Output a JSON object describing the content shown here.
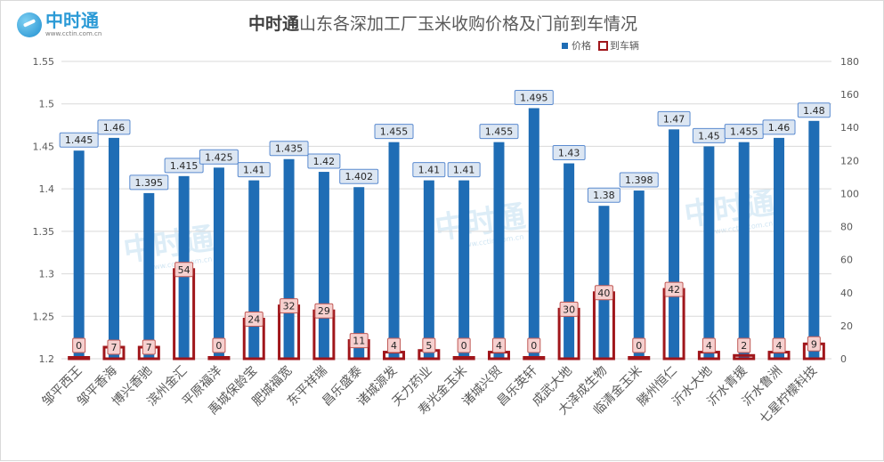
{
  "header": {
    "brand": "中时通",
    "brand_url": "www.cctin.com.cn",
    "title_brand": "中时通",
    "title_rest": "山东各深加工厂玉米收购价格及门前到车情况"
  },
  "watermark": {
    "text": "中时通",
    "url": "www.cctin.com.cn"
  },
  "colors": {
    "price_bar": "#1f6db5",
    "price_label_fill": "#dce6f2",
    "price_label_border": "#5b8bd0",
    "vehicle_border": "#a0161b",
    "vehicle_label_fill": "#f6d0cf",
    "vehicle_label_border": "#c05a56",
    "gridline": "#d9d9d9",
    "axis_text": "#595959"
  },
  "chart_data": {
    "type": "bar",
    "title": "中时通山东各深加工厂玉米收购价格及门前到车情况",
    "categories": [
      "邹平西王",
      "邹平香海",
      "博兴香驰",
      "滨州金汇",
      "平原福洋",
      "禹城保龄宝",
      "肥城福宽",
      "东平祥瑞",
      "昌乐盛泰",
      "诸城源发",
      "天力药业",
      "寿光金玉米",
      "诸城兴贸",
      "昌乐英轩",
      "成武大地",
      "大泽成生物",
      "临清金玉米",
      "滕州恒仁",
      "沂水大地",
      "沂水青援",
      "沂水鲁洲",
      "七星柠檬科技"
    ],
    "series": [
      {
        "name": "价格",
        "axis": "left",
        "values": [
          1.445,
          1.46,
          1.395,
          1.415,
          1.425,
          1.41,
          1.435,
          1.42,
          1.402,
          1.455,
          1.41,
          1.41,
          1.455,
          1.495,
          1.43,
          1.38,
          1.398,
          1.47,
          1.45,
          1.455,
          1.46,
          1.48
        ],
        "labels": [
          "1.445",
          "1.46",
          "1.395",
          "1.415",
          "1.425",
          "1.41",
          "1.435",
          "1.42",
          "1.402",
          "1.455",
          "1.41",
          "1.41",
          "1.455",
          "1.495",
          "1.43",
          "1.38",
          "1.398",
          "1.47",
          "1.45",
          "1.455",
          "1.46",
          "1.48"
        ]
      },
      {
        "name": "到车辆",
        "axis": "right",
        "values": [
          0,
          7,
          7,
          54,
          0,
          24,
          32,
          29,
          11,
          4,
          5,
          0,
          4,
          0,
          30,
          40,
          0,
          42,
          4,
          2,
          4,
          9
        ],
        "labels": [
          "0",
          "7",
          "7",
          "54",
          "0",
          "24",
          "32",
          "29",
          "11",
          "4",
          "5",
          "0",
          "4",
          "0",
          "30",
          "40",
          "0",
          "42",
          "4",
          "2",
          "4",
          "9"
        ]
      }
    ],
    "left_axis": {
      "min": 1.2,
      "max": 1.55,
      "ticks": [
        "1.2",
        "1.25",
        "1.3",
        "1.35",
        "1.4",
        "1.45",
        "1.5",
        "1.55"
      ]
    },
    "right_axis": {
      "min": 0,
      "max": 180,
      "ticks": [
        "0",
        "20",
        "40",
        "60",
        "80",
        "100",
        "120",
        "140",
        "160",
        "180"
      ]
    },
    "legend": {
      "position": "top-right",
      "price": "价格",
      "vehicles": "到车辆"
    },
    "grid": true
  }
}
